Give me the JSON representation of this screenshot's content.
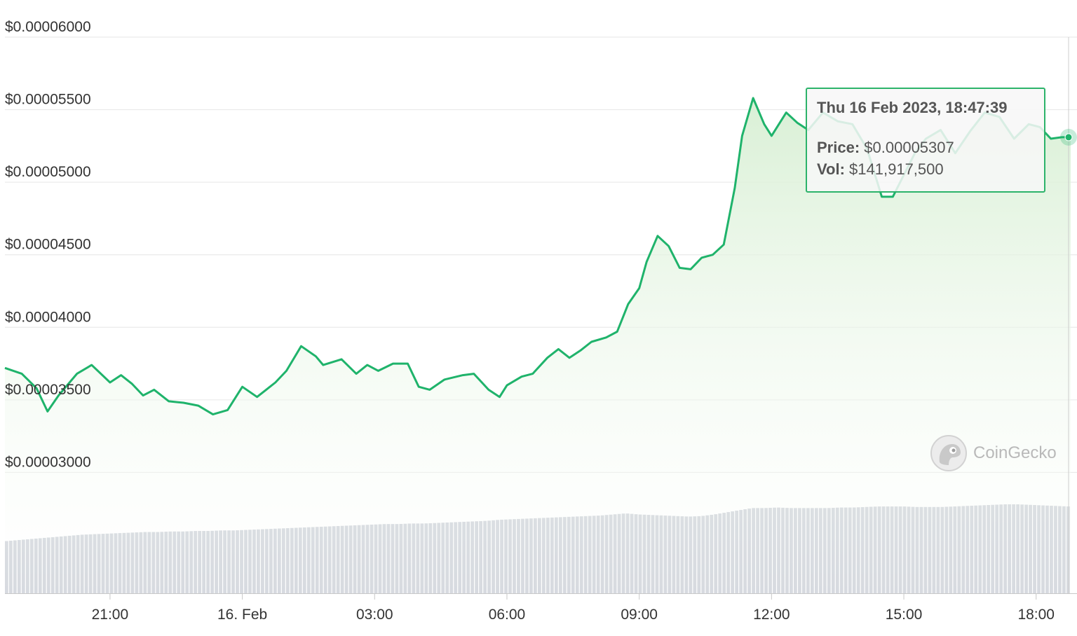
{
  "tooltip": {
    "datetime": "Thu 16 Feb 2023, 18:47:39",
    "price_label": "Price:",
    "price_value": "$0.00005307",
    "vol_label": "Vol:",
    "vol_value": "$141,917,500"
  },
  "watermark": {
    "text": "CoinGecko"
  },
  "colors": {
    "line": "#1fb36b",
    "area_top": "#d7efd3",
    "area_bottom": "#ffffff",
    "volume": "#cdd1d8",
    "grid": "#e6e6e6",
    "tooltip_border": "#2cb36a"
  },
  "chart_data": {
    "type": "line",
    "xlabel": "",
    "ylabel": "",
    "x_range": [
      "2023-02-15 18:37",
      "2023-02-16 18:47"
    ],
    "ylim": [
      2.78e-05,
      6e-05
    ],
    "y_ticks": [
      3e-05,
      3.5e-05,
      4e-05,
      4.5e-05,
      5e-05,
      5.5e-05,
      6e-05
    ],
    "y_tick_labels": [
      "$0.00003000",
      "$0.00003500",
      "$0.00004000",
      "$0.00004500",
      "$0.00005000",
      "$0.00005500",
      "$0.00006000"
    ],
    "x_ticks": [
      "2023-02-15 21:00",
      "2023-02-16 00:00",
      "2023-02-16 03:00",
      "2023-02-16 06:00",
      "2023-02-16 09:00",
      "2023-02-16 12:00",
      "2023-02-16 15:00",
      "2023-02-16 18:00"
    ],
    "x_tick_labels": [
      "21:00",
      "16. Feb",
      "03:00",
      "06:00",
      "09:00",
      "12:00",
      "15:00",
      "18:00"
    ],
    "grid": true,
    "series": [
      {
        "x": [
          "2023-02-15 18:37",
          "2023-02-15 19:00",
          "2023-02-15 19:20",
          "2023-02-15 19:35",
          "2023-02-15 19:50",
          "2023-02-15 20:15",
          "2023-02-15 20:35",
          "2023-02-15 21:00",
          "2023-02-15 21:15",
          "2023-02-15 21:30",
          "2023-02-15 21:45",
          "2023-02-15 22:00",
          "2023-02-15 22:20",
          "2023-02-15 22:40",
          "2023-02-15 23:00",
          "2023-02-15 23:20",
          "2023-02-15 23:40",
          "2023-02-16 00:00",
          "2023-02-16 00:20",
          "2023-02-16 00:45",
          "2023-02-16 01:00",
          "2023-02-16 01:20",
          "2023-02-16 01:40",
          "2023-02-16 01:50",
          "2023-02-16 02:15",
          "2023-02-16 02:35",
          "2023-02-16 02:50",
          "2023-02-16 03:05",
          "2023-02-16 03:25",
          "2023-02-16 03:45",
          "2023-02-16 04:00",
          "2023-02-16 04:15",
          "2023-02-16 04:35",
          "2023-02-16 05:00",
          "2023-02-16 05:15",
          "2023-02-16 05:35",
          "2023-02-16 05:50",
          "2023-02-16 06:00",
          "2023-02-16 06:20",
          "2023-02-16 06:35",
          "2023-02-16 06:55",
          "2023-02-16 07:10",
          "2023-02-16 07:25",
          "2023-02-16 07:40",
          "2023-02-16 07:55",
          "2023-02-16 08:15",
          "2023-02-16 08:30",
          "2023-02-16 08:45",
          "2023-02-16 09:00",
          "2023-02-16 09:10",
          "2023-02-16 09:25",
          "2023-02-16 09:40",
          "2023-02-16 09:55",
          "2023-02-16 10:10",
          "2023-02-16 10:25",
          "2023-02-16 10:40",
          "2023-02-16 10:55",
          "2023-02-16 11:10",
          "2023-02-16 11:20",
          "2023-02-16 11:35",
          "2023-02-16 11:50",
          "2023-02-16 12:00",
          "2023-02-16 12:20",
          "2023-02-16 12:35",
          "2023-02-16 12:50",
          "2023-02-16 13:10",
          "2023-02-16 13:30",
          "2023-02-16 13:50",
          "2023-02-16 14:10",
          "2023-02-16 14:30",
          "2023-02-16 14:45",
          "2023-02-16 15:00",
          "2023-02-16 15:15",
          "2023-02-16 15:30",
          "2023-02-16 15:50",
          "2023-02-16 16:10",
          "2023-02-16 16:30",
          "2023-02-16 16:50",
          "2023-02-16 17:10",
          "2023-02-16 17:30",
          "2023-02-16 17:50",
          "2023-02-16 18:05",
          "2023-02-16 18:20",
          "2023-02-16 18:35",
          "2023-02-16 18:47"
        ],
        "values": [
          3.72e-05,
          3.68e-05,
          3.58e-05,
          3.42e-05,
          3.53e-05,
          3.68e-05,
          3.74e-05,
          3.62e-05,
          3.67e-05,
          3.61e-05,
          3.53e-05,
          3.57e-05,
          3.49e-05,
          3.48e-05,
          3.46e-05,
          3.4e-05,
          3.43e-05,
          3.59e-05,
          3.52e-05,
          3.62e-05,
          3.7e-05,
          3.87e-05,
          3.8e-05,
          3.74e-05,
          3.78e-05,
          3.68e-05,
          3.74e-05,
          3.7e-05,
          3.75e-05,
          3.75e-05,
          3.59e-05,
          3.57e-05,
          3.64e-05,
          3.67e-05,
          3.68e-05,
          3.57e-05,
          3.52e-05,
          3.6e-05,
          3.66e-05,
          3.68e-05,
          3.79e-05,
          3.85e-05,
          3.79e-05,
          3.84e-05,
          3.9e-05,
          3.93e-05,
          3.97e-05,
          4.16e-05,
          4.27e-05,
          4.45e-05,
          4.63e-05,
          4.56e-05,
          4.41e-05,
          4.4e-05,
          4.48e-05,
          4.5e-05,
          4.57e-05,
          4.96e-05,
          5.32e-05,
          5.58e-05,
          5.4e-05,
          5.32e-05,
          5.48e-05,
          5.41e-05,
          5.36e-05,
          5.48e-05,
          5.42e-05,
          5.4e-05,
          5.23e-05,
          4.9e-05,
          4.9e-05,
          5.05e-05,
          5.2e-05,
          5.3e-05,
          5.36e-05,
          5.2e-05,
          5.35e-05,
          5.48e-05,
          5.45e-05,
          5.3e-05,
          5.4e-05,
          5.38e-05,
          5.3e-05,
          5.31e-05,
          5.31e-05
        ]
      }
    ],
    "volume": {
      "values": [
        98,
        100,
        102,
        104,
        106,
        108,
        110,
        111,
        112,
        113,
        114,
        115,
        115,
        116,
        116,
        117,
        117,
        118,
        118,
        119,
        120,
        121,
        122,
        123,
        124,
        125,
        126,
        127,
        128,
        129,
        130,
        130,
        131,
        131,
        132,
        133,
        134,
        135,
        136,
        138,
        139,
        140,
        141,
        142,
        143,
        144,
        145,
        146,
        148,
        150,
        148,
        147,
        146,
        145,
        144,
        145,
        148,
        152,
        156,
        160,
        160,
        161,
        160,
        160,
        160,
        160,
        161,
        161,
        162,
        163,
        163,
        163,
        162,
        162,
        162,
        163,
        164,
        165,
        166,
        167,
        167,
        166,
        165,
        164,
        163
      ]
    }
  }
}
